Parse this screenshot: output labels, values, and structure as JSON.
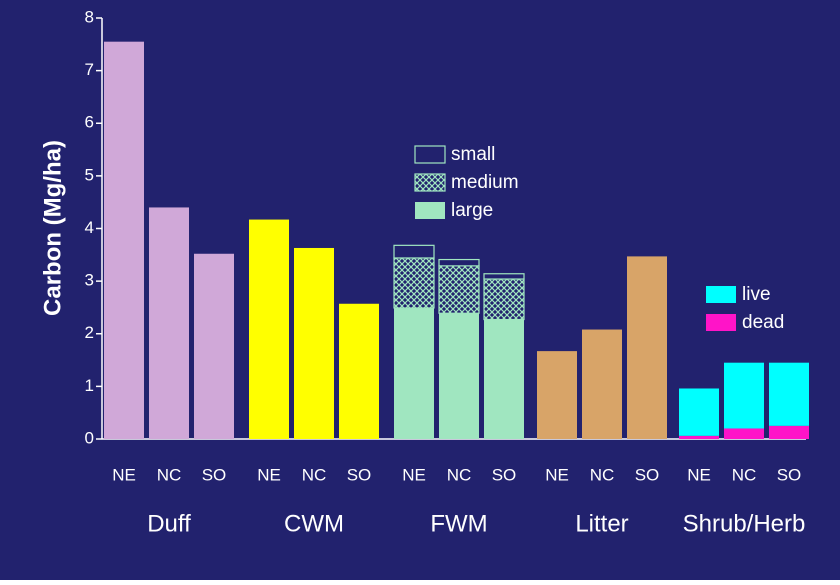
{
  "colors": {
    "background": "#22226e",
    "axis": "#ffffff",
    "duff": "#d0a8d8",
    "cwm": "#ffff00",
    "fwm": "#a0e6c0",
    "litter": "#d8a468",
    "live": "#00ffff",
    "dead": "#ff14c8"
  },
  "chart_data": {
    "type": "bar",
    "ylabel": "Carbon (Mg/ha)",
    "ylim": [
      0,
      8
    ],
    "yticks": [
      "0",
      "1",
      "2",
      "3",
      "4",
      "5",
      "6",
      "7",
      "8"
    ],
    "groups": [
      {
        "name": "Duff",
        "categories": [
          "NE",
          "NC",
          "SO"
        ],
        "series": [
          {
            "values": [
              7.55,
              4.4,
              3.52
            ]
          }
        ]
      },
      {
        "name": "CWM",
        "categories": [
          "NE",
          "NC",
          "SO"
        ],
        "series": [
          {
            "values": [
              4.17,
              3.63,
              2.57
            ]
          }
        ]
      },
      {
        "name": "FWM",
        "categories": [
          "NE",
          "NC",
          "SO"
        ],
        "series": [
          {
            "name": "large",
            "values": [
              2.49,
              2.39,
              2.27
            ]
          },
          {
            "name": "medium",
            "values": [
              0.95,
              0.9,
              0.77
            ]
          },
          {
            "name": "small",
            "values": [
              0.24,
              0.12,
              0.1
            ]
          }
        ]
      },
      {
        "name": "Litter",
        "categories": [
          "NE",
          "NC",
          "SO"
        ],
        "series": [
          {
            "values": [
              1.67,
              2.08,
              3.47
            ]
          }
        ]
      },
      {
        "name": "Shrub/Herb",
        "categories": [
          "NE",
          "NC",
          "SO"
        ],
        "series": [
          {
            "name": "dead",
            "values": [
              0.06,
              0.2,
              0.25
            ]
          },
          {
            "name": "live",
            "values": [
              0.9,
              1.25,
              1.2
            ]
          }
        ]
      }
    ],
    "legends": [
      {
        "position": "center",
        "items": [
          "small",
          "medium",
          "large"
        ]
      },
      {
        "position": "right",
        "items": [
          "live",
          "dead"
        ]
      }
    ]
  }
}
